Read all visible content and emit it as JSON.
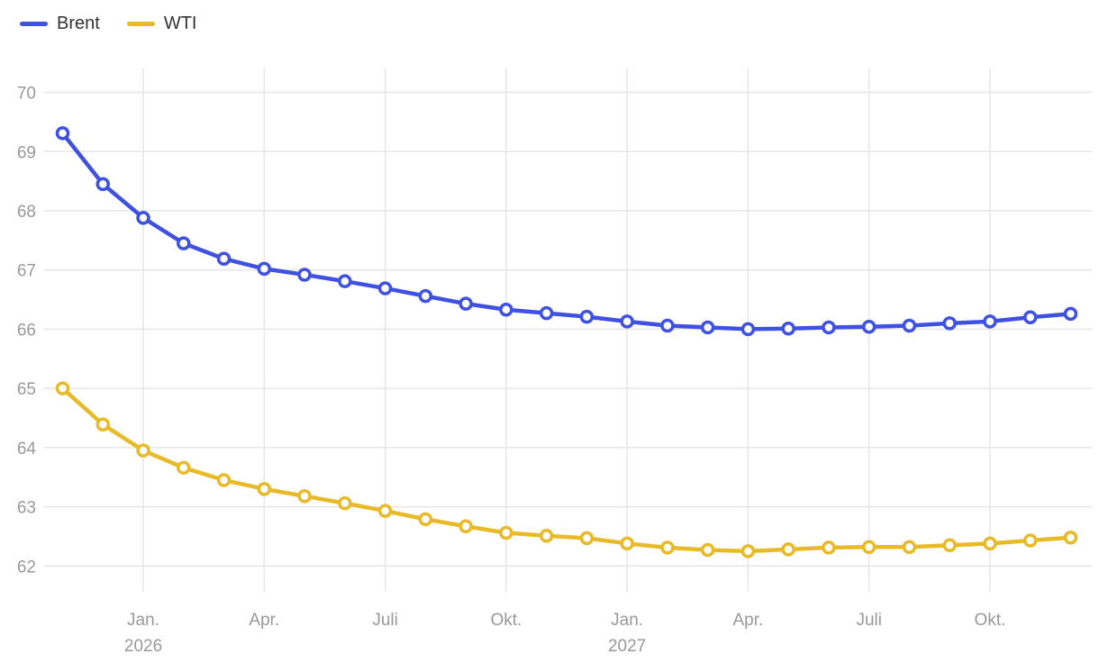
{
  "legend": {
    "items": [
      {
        "label": "Brent",
        "color": "#3e51e1"
      },
      {
        "label": "WTI",
        "color": "#e9ba28"
      }
    ]
  },
  "chart_data": {
    "type": "line",
    "title": "",
    "xlabel": "",
    "ylabel": "",
    "grid": true,
    "legend_position": "top-left",
    "marker": "open-circle",
    "categories": [
      "Nov. 2025",
      "Dez. 2025",
      "Jan. 2026",
      "Feb. 2026",
      "März 2026",
      "Apr. 2026",
      "Mai 2026",
      "Juni 2026",
      "Juli 2026",
      "Aug. 2026",
      "Sep. 2026",
      "Okt. 2026",
      "Nov. 2026",
      "Dez. 2026",
      "Jan. 2027",
      "Feb. 2027",
      "März 2027",
      "Apr. 2027",
      "Mai 2027",
      "Juni 2027",
      "Juli 2027",
      "Aug. 2027",
      "Sep. 2027",
      "Okt. 2027",
      "Nov. 2027",
      "Dez. 2027"
    ],
    "series": [
      {
        "name": "Brent",
        "color": "#3e51e1",
        "values": [
          69.31,
          68.45,
          67.88,
          67.45,
          67.19,
          67.02,
          66.92,
          66.81,
          66.69,
          66.56,
          66.43,
          66.33,
          66.27,
          66.21,
          66.13,
          66.06,
          66.03,
          66.0,
          66.01,
          66.03,
          66.04,
          66.06,
          66.1,
          66.13,
          66.2,
          66.26
        ]
      },
      {
        "name": "WTI",
        "color": "#e9ba28",
        "values": [
          65.0,
          64.39,
          63.95,
          63.66,
          63.45,
          63.3,
          63.18,
          63.06,
          62.93,
          62.79,
          62.67,
          62.56,
          62.51,
          62.47,
          62.38,
          62.31,
          62.27,
          62.25,
          62.28,
          62.31,
          62.32,
          62.32,
          62.35,
          62.38,
          62.43,
          62.48
        ]
      }
    ],
    "ylim": [
      61.5,
      70.3
    ],
    "y_ticks": [
      70,
      69,
      68,
      67,
      66,
      65,
      64,
      63,
      62
    ],
    "x_ticks": [
      {
        "index": 2,
        "label": "Jan.",
        "year": "2026"
      },
      {
        "index": 5,
        "label": "Apr."
      },
      {
        "index": 8,
        "label": "Juli"
      },
      {
        "index": 11,
        "label": "Okt."
      },
      {
        "index": 14,
        "label": "Jan.",
        "year": "2027"
      },
      {
        "index": 17,
        "label": "Apr."
      },
      {
        "index": 20,
        "label": "Juli"
      },
      {
        "index": 23,
        "label": "Okt."
      }
    ],
    "colors": {
      "grid": "#e6e6e6",
      "tick_text": "#999999",
      "legend_text": "#333333",
      "background": "#ffffff"
    }
  }
}
